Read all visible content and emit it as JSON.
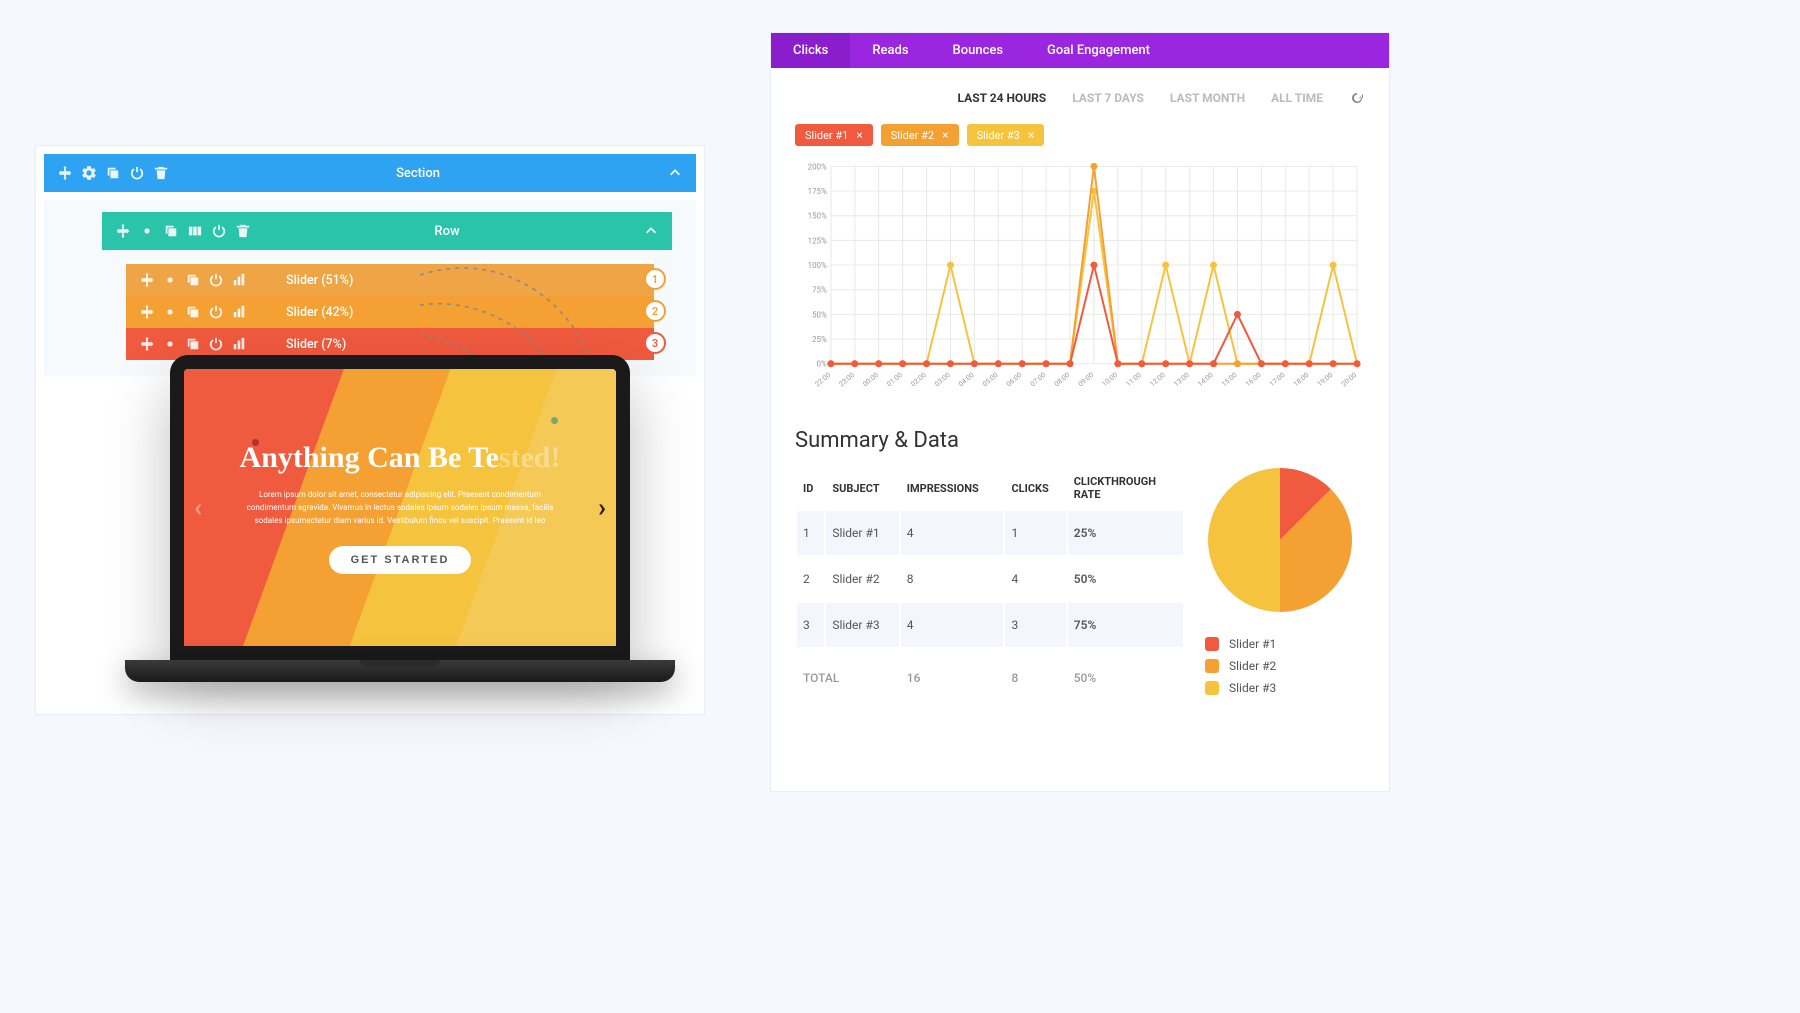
{
  "builder": {
    "section_label": "Section",
    "row_label": "Row",
    "sliders": [
      {
        "label": "Slider (51%)",
        "badge": "1",
        "badge_color": "#f5a033",
        "bg_color": "#efa446"
      },
      {
        "label": "Slider (42%)",
        "badge": "2",
        "badge_color": "#f5a033",
        "bg_color": "#f5a033"
      },
      {
        "label": "Slider (7%)",
        "badge": "3",
        "badge_color": "#f05a3e",
        "bg_color": "#f05a3e"
      }
    ],
    "section_color": "#2ea3f2",
    "row_color": "#29c4a9"
  },
  "slide": {
    "title_a": "Anything",
    "title_b": " Can Be Te",
    "title_c": "sted!",
    "body": "Lorem ipsum dolor sit amet, consectetur adipiscing elit. Praesent condimentum condimentum sgravida. Vivamus in lectus sodales ipsum sodales ipsum massa, facilis sodales ipsumectetur diam varius id. Vestibulum fincu vel suscipit. Praesent id leo",
    "button": "GET STARTED"
  },
  "analytics": {
    "tabs": [
      "Clicks",
      "Reads",
      "Bounces",
      "Goal Engagement"
    ],
    "active_tab": 0,
    "time_filters": [
      "LAST 24 HOURS",
      "LAST 7 DAYS",
      "LAST MONTH",
      "ALL TIME"
    ],
    "active_filter": 0,
    "chips": [
      {
        "label": "Slider #1",
        "color": "#f05a3e"
      },
      {
        "label": "Slider #2",
        "color": "#f5a033"
      },
      {
        "label": "Slider #3",
        "color": "#f5c33e"
      }
    ],
    "chart": {
      "type": "line",
      "y_ticks": [
        0,
        25,
        50,
        75,
        100,
        125,
        150,
        175,
        200
      ],
      "x_labels": [
        "22:00",
        "23:00",
        "00:00",
        "01:00",
        "02:00",
        "03:00",
        "04:00",
        "05:00",
        "06:00",
        "07:00",
        "08:00",
        "09:00",
        "10:00",
        "11:00",
        "12:00",
        "13:00",
        "14:00",
        "15:00",
        "16:00",
        "17:00",
        "18:00",
        "19:00",
        "20:00"
      ],
      "series": [
        {
          "name": "Slider #1",
          "color": "#f05a3e",
          "data": [
            0,
            0,
            0,
            0,
            0,
            0,
            0,
            0,
            0,
            0,
            0,
            100,
            0,
            0,
            0,
            0,
            0,
            50,
            0,
            0,
            0,
            0,
            0
          ]
        },
        {
          "name": "Slider #2",
          "color": "#f5a033",
          "data": [
            0,
            0,
            0,
            0,
            0,
            0,
            0,
            0,
            0,
            0,
            0,
            200,
            0,
            0,
            0,
            0,
            0,
            0,
            0,
            0,
            0,
            0,
            0
          ]
        },
        {
          "name": "Slider #3",
          "color": "#f5c33e",
          "data": [
            0,
            0,
            0,
            0,
            0,
            100,
            0,
            0,
            0,
            0,
            0,
            175,
            0,
            0,
            100,
            0,
            100,
            0,
            0,
            0,
            0,
            100,
            0
          ]
        }
      ],
      "grid_color": "#e8e8e8",
      "background_color": "#ffffff",
      "marker_size": 3.5,
      "line_width": 2
    },
    "summary": {
      "title": "Summary & Data",
      "columns": [
        "ID",
        "SUBJECT",
        "IMPRESSIONS",
        "CLICKS",
        "CLICKTHROUGH RATE"
      ],
      "rows": [
        {
          "id": "1",
          "subject": "Slider #1",
          "impressions": "4",
          "clicks": "1",
          "ctr": "25%"
        },
        {
          "id": "2",
          "subject": "Slider #2",
          "impressions": "8",
          "clicks": "4",
          "ctr": "50%"
        },
        {
          "id": "3",
          "subject": "Slider #3",
          "impressions": "4",
          "clicks": "3",
          "ctr": "75%"
        }
      ],
      "total": {
        "label": "TOTAL",
        "impressions": "16",
        "clicks": "8",
        "ctr": "50%"
      }
    },
    "pie": {
      "slices": [
        {
          "label": "Slider #1",
          "value": 12.5,
          "color": "#f05a3e"
        },
        {
          "label": "Slider #2",
          "value": 37.5,
          "color": "#f5a033"
        },
        {
          "label": "Slider #3",
          "value": 50,
          "color": "#f5c33e"
        }
      ]
    }
  }
}
